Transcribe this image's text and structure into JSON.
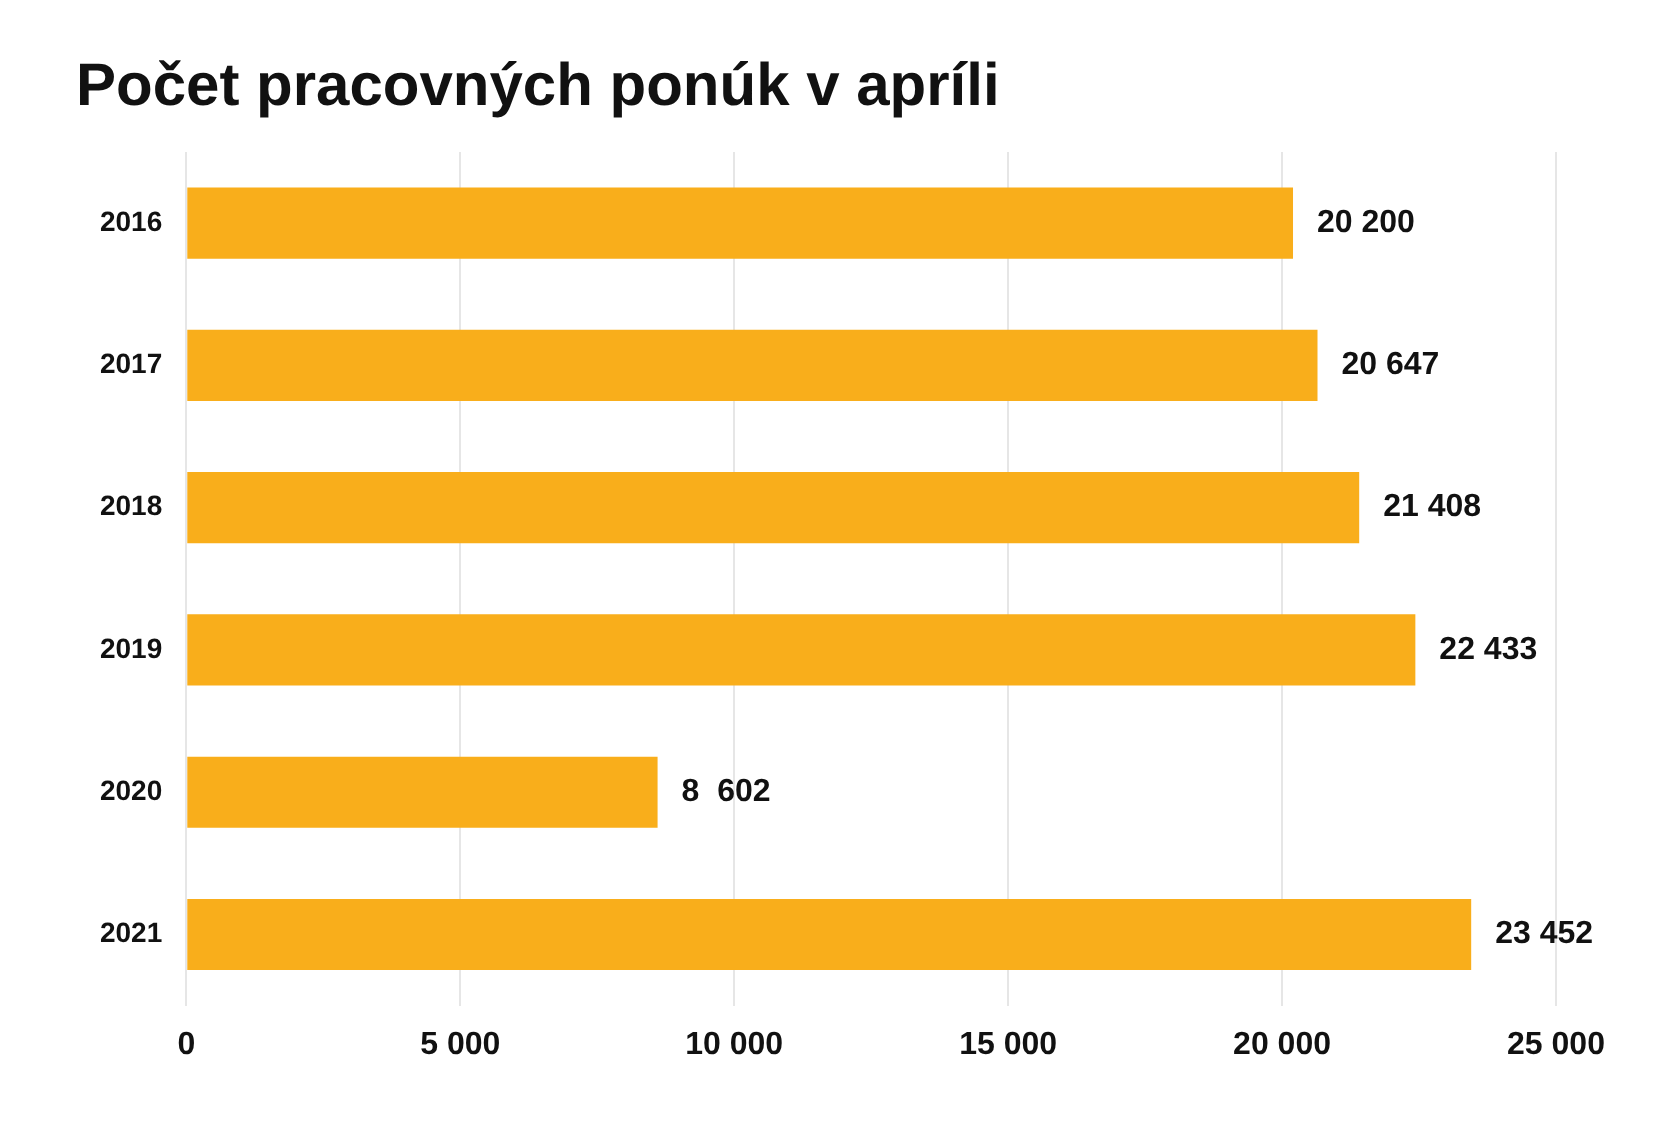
{
  "chart_data": {
    "type": "bar",
    "orientation": "horizontal",
    "title": "Počet pracovných ponúk v apríli",
    "categories": [
      "2016",
      "2017",
      "2018",
      "2019",
      "2020",
      "2021"
    ],
    "values": [
      20200,
      20647,
      21408,
      22433,
      8602,
      23452
    ],
    "value_labels": [
      "20 200",
      "20 647",
      "21 408",
      "22 433",
      "8  602",
      "23 452"
    ],
    "color": "#f9ae1b",
    "xlim": [
      0,
      25000
    ],
    "xticks": [
      0,
      {
        "value": 5000,
        "label": "5 000"
      },
      {
        "value": 10000,
        "label": "10 000"
      },
      {
        "value": 15000,
        "label": "15 000"
      },
      {
        "value": 20000,
        "label": "20 000"
      },
      {
        "value": 25000,
        "label": "25 000"
      }
    ],
    "grid": "x",
    "legend": false
  }
}
